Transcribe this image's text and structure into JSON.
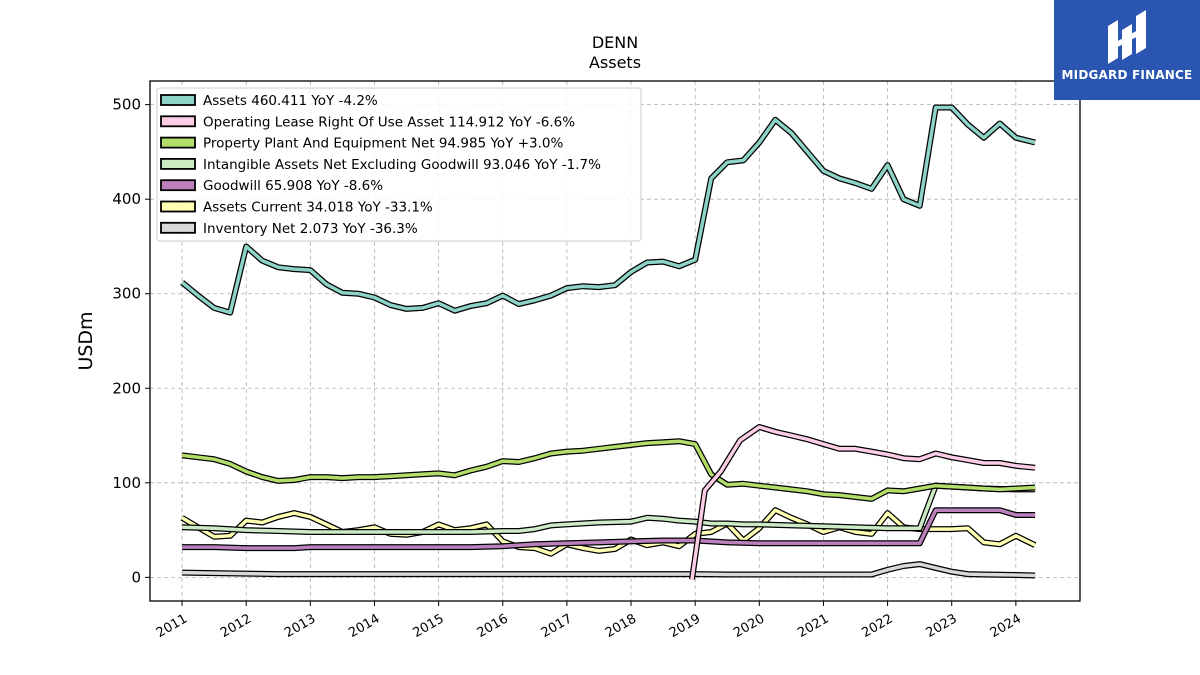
{
  "brand": {
    "name": "MIDGARD FINANCE",
    "color": "#2a55b0"
  },
  "chart_data": {
    "type": "line",
    "title": "DENN",
    "subtitle": "Assets",
    "ylabel": "USDm",
    "xlabel": "",
    "xlim": [
      2010.5,
      2025.0
    ],
    "ylim": [
      -25,
      525
    ],
    "yticks": [
      0,
      100,
      200,
      300,
      400,
      500
    ],
    "xticks": [
      "2011",
      "2012",
      "2013",
      "2014",
      "2015",
      "2016",
      "2017",
      "2018",
      "2019",
      "2020",
      "2021",
      "2022",
      "2023",
      "2024"
    ],
    "grid": true,
    "legend_position": "top-left",
    "series": [
      {
        "name": "Assets",
        "legend": "Assets  460.411 YoY -4.2%",
        "color": "#8dd3c7",
        "points": [
          [
            2011.0,
            312
          ],
          [
            2011.25,
            298
          ],
          [
            2011.5,
            285
          ],
          [
            2011.75,
            280
          ],
          [
            2012.0,
            350
          ],
          [
            2012.25,
            335
          ],
          [
            2012.5,
            328
          ],
          [
            2012.75,
            326
          ],
          [
            2013.0,
            325
          ],
          [
            2013.25,
            310
          ],
          [
            2013.5,
            301
          ],
          [
            2013.75,
            300
          ],
          [
            2014.0,
            296
          ],
          [
            2014.25,
            288
          ],
          [
            2014.5,
            284
          ],
          [
            2014.75,
            285
          ],
          [
            2015.0,
            290
          ],
          [
            2015.25,
            282
          ],
          [
            2015.5,
            287
          ],
          [
            2015.75,
            290
          ],
          [
            2016.0,
            298
          ],
          [
            2016.25,
            289
          ],
          [
            2016.5,
            293
          ],
          [
            2016.75,
            298
          ],
          [
            2017.0,
            306
          ],
          [
            2017.25,
            308
          ],
          [
            2017.5,
            307
          ],
          [
            2017.75,
            309
          ],
          [
            2018.0,
            323
          ],
          [
            2018.25,
            333
          ],
          [
            2018.5,
            334
          ],
          [
            2018.75,
            329
          ],
          [
            2019.0,
            336
          ],
          [
            2019.25,
            422
          ],
          [
            2019.5,
            439
          ],
          [
            2019.75,
            441
          ],
          [
            2020.0,
            460
          ],
          [
            2020.25,
            484
          ],
          [
            2020.5,
            470
          ],
          [
            2020.75,
            450
          ],
          [
            2021.0,
            430
          ],
          [
            2021.25,
            422
          ],
          [
            2021.5,
            417
          ],
          [
            2021.75,
            411
          ],
          [
            2022.0,
            436
          ],
          [
            2022.25,
            400
          ],
          [
            2022.5,
            393
          ],
          [
            2022.75,
            497
          ],
          [
            2023.0,
            497
          ],
          [
            2023.25,
            479
          ],
          [
            2023.5,
            465
          ],
          [
            2023.75,
            480
          ],
          [
            2024.0,
            465
          ],
          [
            2024.3,
            460
          ]
        ]
      },
      {
        "name": "Operating Lease Right Of Use Asset",
        "legend": "Operating Lease Right Of Use Asset  114.912 YoY -6.6%",
        "color": "#fccde5",
        "points": [
          [
            2018.95,
            -2
          ],
          [
            2019.15,
            92
          ],
          [
            2019.4,
            112
          ],
          [
            2019.7,
            145
          ],
          [
            2020.0,
            159
          ],
          [
            2020.25,
            154
          ],
          [
            2020.5,
            150
          ],
          [
            2020.75,
            146
          ],
          [
            2021.0,
            141
          ],
          [
            2021.25,
            136
          ],
          [
            2021.5,
            136
          ],
          [
            2021.75,
            133
          ],
          [
            2022.0,
            130
          ],
          [
            2022.25,
            126
          ],
          [
            2022.5,
            125
          ],
          [
            2022.75,
            131
          ],
          [
            2023.0,
            127
          ],
          [
            2023.25,
            124
          ],
          [
            2023.5,
            121
          ],
          [
            2023.75,
            121
          ],
          [
            2024.0,
            118
          ],
          [
            2024.3,
            116
          ]
        ]
      },
      {
        "name": "Property Plant And Equipment Net",
        "legend": "Property Plant And Equipment Net  94.985 YoY +3.0%",
        "color": "#b3de69",
        "points": [
          [
            2011.0,
            129
          ],
          [
            2011.25,
            127
          ],
          [
            2011.5,
            125
          ],
          [
            2011.75,
            120
          ],
          [
            2012.0,
            112
          ],
          [
            2012.25,
            106
          ],
          [
            2012.5,
            102
          ],
          [
            2012.75,
            103
          ],
          [
            2013.0,
            106
          ],
          [
            2013.25,
            106
          ],
          [
            2013.5,
            105
          ],
          [
            2013.75,
            106
          ],
          [
            2014.0,
            106
          ],
          [
            2014.25,
            107
          ],
          [
            2014.5,
            108
          ],
          [
            2014.75,
            109
          ],
          [
            2015.0,
            110
          ],
          [
            2015.25,
            108
          ],
          [
            2015.5,
            113
          ],
          [
            2015.75,
            117
          ],
          [
            2016.0,
            123
          ],
          [
            2016.25,
            122
          ],
          [
            2016.5,
            126
          ],
          [
            2016.75,
            131
          ],
          [
            2017.0,
            133
          ],
          [
            2017.25,
            134
          ],
          [
            2017.5,
            136
          ],
          [
            2017.75,
            138
          ],
          [
            2018.0,
            140
          ],
          [
            2018.25,
            142
          ],
          [
            2018.5,
            143
          ],
          [
            2018.75,
            144
          ],
          [
            2019.0,
            141
          ],
          [
            2019.25,
            109
          ],
          [
            2019.5,
            98
          ],
          [
            2019.75,
            99
          ],
          [
            2020.0,
            97
          ],
          [
            2020.25,
            95
          ],
          [
            2020.5,
            93
          ],
          [
            2020.75,
            91
          ],
          [
            2021.0,
            88
          ],
          [
            2021.25,
            87
          ],
          [
            2021.5,
            85
          ],
          [
            2021.75,
            83
          ],
          [
            2022.0,
            92
          ],
          [
            2022.25,
            91
          ],
          [
            2022.5,
            94
          ],
          [
            2022.75,
            97
          ],
          [
            2023.0,
            96
          ],
          [
            2023.25,
            95
          ],
          [
            2023.5,
            94
          ],
          [
            2023.75,
            93
          ],
          [
            2024.0,
            94
          ],
          [
            2024.3,
            95
          ]
        ]
      },
      {
        "name": "Intangible Assets Net Excluding Goodwill",
        "legend": "Intangible Assets Net Excluding Goodwill  93.046 YoY -1.7%",
        "color": "#ccebc5",
        "points": [
          [
            2011.0,
            53
          ],
          [
            2011.5,
            52
          ],
          [
            2012.0,
            50
          ],
          [
            2012.5,
            49
          ],
          [
            2013.0,
            48
          ],
          [
            2013.5,
            48
          ],
          [
            2014.0,
            48
          ],
          [
            2014.5,
            48
          ],
          [
            2015.0,
            48
          ],
          [
            2015.5,
            48
          ],
          [
            2016.0,
            49
          ],
          [
            2016.25,
            49
          ],
          [
            2016.5,
            51
          ],
          [
            2016.75,
            55
          ],
          [
            2017.0,
            56
          ],
          [
            2017.5,
            58
          ],
          [
            2018.0,
            59
          ],
          [
            2018.25,
            63
          ],
          [
            2018.5,
            62
          ],
          [
            2018.75,
            60
          ],
          [
            2019.0,
            59
          ],
          [
            2019.25,
            57
          ],
          [
            2019.5,
            57
          ],
          [
            2019.75,
            56
          ],
          [
            2020.0,
            56
          ],
          [
            2020.5,
            55
          ],
          [
            2021.0,
            54
          ],
          [
            2021.5,
            53
          ],
          [
            2022.0,
            52
          ],
          [
            2022.5,
            52
          ],
          [
            2022.75,
            97
          ],
          [
            2023.0,
            96
          ],
          [
            2023.5,
            94
          ],
          [
            2024.0,
            93
          ],
          [
            2024.3,
            93
          ]
        ]
      },
      {
        "name": "Goodwill",
        "legend": "Goodwill  65.908 YoY -8.6%",
        "color": "#bc80bd",
        "points": [
          [
            2011.0,
            32
          ],
          [
            2011.5,
            32
          ],
          [
            2012.0,
            31
          ],
          [
            2012.5,
            31
          ],
          [
            2012.75,
            31
          ],
          [
            2013.0,
            32
          ],
          [
            2013.5,
            32
          ],
          [
            2014.0,
            32
          ],
          [
            2014.5,
            32
          ],
          [
            2015.0,
            32
          ],
          [
            2015.5,
            32
          ],
          [
            2016.0,
            33
          ],
          [
            2016.5,
            35
          ],
          [
            2017.0,
            36
          ],
          [
            2017.5,
            37
          ],
          [
            2018.0,
            38
          ],
          [
            2018.5,
            39
          ],
          [
            2019.0,
            39
          ],
          [
            2019.5,
            37
          ],
          [
            2020.0,
            36
          ],
          [
            2020.5,
            36
          ],
          [
            2021.0,
            36
          ],
          [
            2021.5,
            36
          ],
          [
            2022.0,
            36
          ],
          [
            2022.5,
            36
          ],
          [
            2022.75,
            71
          ],
          [
            2023.0,
            71
          ],
          [
            2023.5,
            71
          ],
          [
            2023.75,
            71
          ],
          [
            2024.0,
            66
          ],
          [
            2024.3,
            66
          ]
        ]
      },
      {
        "name": "Assets Current",
        "legend": "Assets Current  34.018 YoY -33.1%",
        "color": "#ffffb3",
        "points": [
          [
            2011.0,
            63
          ],
          [
            2011.25,
            53
          ],
          [
            2011.5,
            43
          ],
          [
            2011.75,
            44
          ],
          [
            2012.0,
            60
          ],
          [
            2012.25,
            58
          ],
          [
            2012.5,
            64
          ],
          [
            2012.75,
            68
          ],
          [
            2013.0,
            64
          ],
          [
            2013.25,
            56
          ],
          [
            2013.5,
            48
          ],
          [
            2013.75,
            50
          ],
          [
            2014.0,
            53
          ],
          [
            2014.25,
            46
          ],
          [
            2014.5,
            45
          ],
          [
            2014.75,
            48
          ],
          [
            2015.0,
            56
          ],
          [
            2015.25,
            50
          ],
          [
            2015.5,
            52
          ],
          [
            2015.75,
            56
          ],
          [
            2016.0,
            38
          ],
          [
            2016.25,
            32
          ],
          [
            2016.5,
            31
          ],
          [
            2016.75,
            25
          ],
          [
            2017.0,
            35
          ],
          [
            2017.25,
            31
          ],
          [
            2017.5,
            28
          ],
          [
            2017.75,
            30
          ],
          [
            2018.0,
            40
          ],
          [
            2018.25,
            34
          ],
          [
            2018.5,
            37
          ],
          [
            2018.75,
            33
          ],
          [
            2019.0,
            46
          ],
          [
            2019.25,
            48
          ],
          [
            2019.5,
            57
          ],
          [
            2019.75,
            39
          ],
          [
            2020.0,
            52
          ],
          [
            2020.25,
            71
          ],
          [
            2020.5,
            63
          ],
          [
            2020.75,
            56
          ],
          [
            2021.0,
            48
          ],
          [
            2021.25,
            53
          ],
          [
            2021.5,
            48
          ],
          [
            2021.75,
            46
          ],
          [
            2022.0,
            68
          ],
          [
            2022.25,
            53
          ],
          [
            2022.5,
            51
          ],
          [
            2022.75,
            51
          ],
          [
            2023.0,
            51
          ],
          [
            2023.25,
            52
          ],
          [
            2023.5,
            37
          ],
          [
            2023.75,
            35
          ],
          [
            2024.0,
            44
          ],
          [
            2024.3,
            34
          ]
        ]
      },
      {
        "name": "Inventory Net",
        "legend": "Inventory Net  2.073 YoY -36.3%",
        "color": "#d9d9d9",
        "points": [
          [
            2011.0,
            5
          ],
          [
            2011.5,
            4.5
          ],
          [
            2012.0,
            4
          ],
          [
            2012.5,
            3.5
          ],
          [
            2013.0,
            3.5
          ],
          [
            2013.5,
            3.5
          ],
          [
            2014.0,
            3.5
          ],
          [
            2014.5,
            3.5
          ],
          [
            2015.0,
            3.5
          ],
          [
            2015.5,
            3.5
          ],
          [
            2016.0,
            3.5
          ],
          [
            2016.5,
            3.5
          ],
          [
            2017.0,
            3.5
          ],
          [
            2017.5,
            3.5
          ],
          [
            2018.0,
            3.5
          ],
          [
            2018.5,
            3.5
          ],
          [
            2019.0,
            3.5
          ],
          [
            2019.5,
            3
          ],
          [
            2020.0,
            3
          ],
          [
            2020.5,
            3
          ],
          [
            2021.0,
            3
          ],
          [
            2021.5,
            3
          ],
          [
            2021.75,
            3
          ],
          [
            2022.0,
            8
          ],
          [
            2022.25,
            12
          ],
          [
            2022.5,
            14
          ],
          [
            2022.75,
            10
          ],
          [
            2023.0,
            6
          ],
          [
            2023.25,
            3.5
          ],
          [
            2023.5,
            3
          ],
          [
            2024.0,
            2.5
          ],
          [
            2024.3,
            2
          ]
        ]
      }
    ]
  }
}
